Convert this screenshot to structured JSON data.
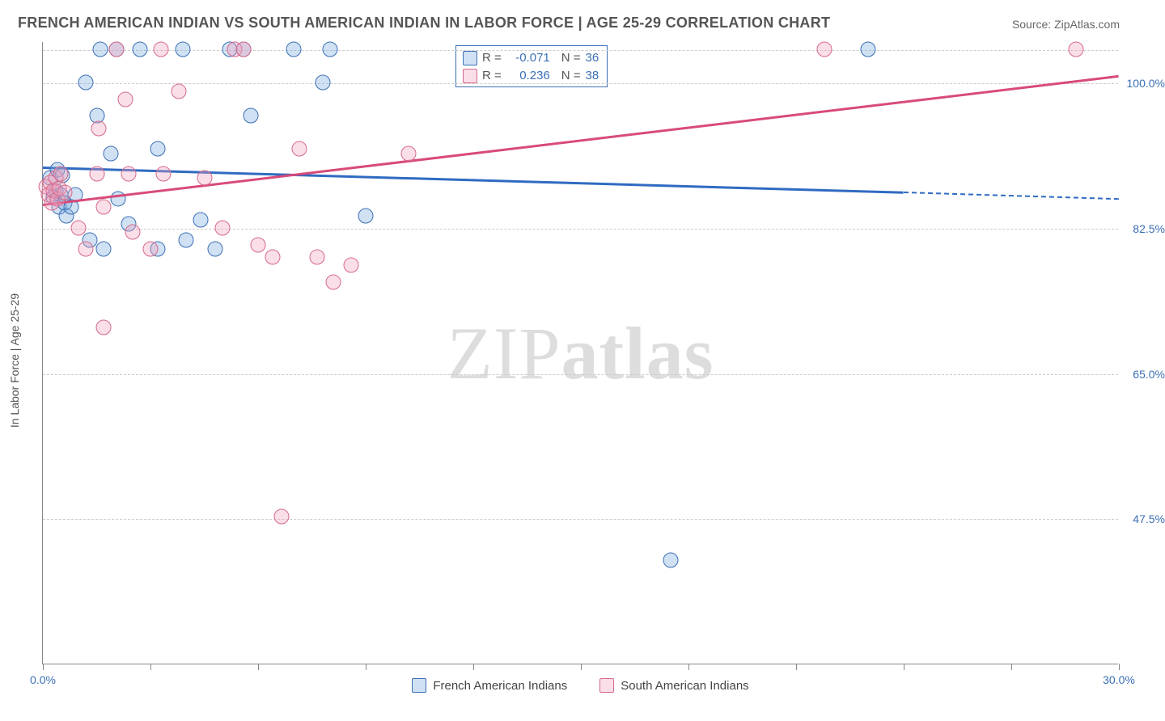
{
  "title": "FRENCH AMERICAN INDIAN VS SOUTH AMERICAN INDIAN IN LABOR FORCE | AGE 25-29 CORRELATION CHART",
  "source_prefix": "Source: ",
  "source_name": "ZipAtlas.com",
  "ylabel": "In Labor Force | Age 25-29",
  "watermark_thin": "ZIP",
  "watermark_bold": "atlas",
  "chart": {
    "type": "scatter-with-regression",
    "background_color": "#ffffff",
    "grid_color": "#cccccc",
    "axis_color": "#888888",
    "label_color_value": "#3b6fb5",
    "label_color_text": "#555555",
    "title_fontsize": 18,
    "tick_fontsize": 14,
    "point_radius": 9.5,
    "xlim": [
      0,
      30
    ],
    "ylim": [
      30,
      105
    ],
    "xtick_positions": [
      0,
      3,
      6,
      9,
      12,
      15,
      18,
      21,
      24,
      27,
      30
    ],
    "xtick_labels": {
      "0": "0.0%",
      "30": "30.0%"
    },
    "ytick_positions": [
      47.5,
      65.0,
      82.5,
      100.0
    ],
    "ytick_labels": [
      "47.5%",
      "65.0%",
      "82.5%",
      "100.0%"
    ],
    "gridline_y_top": 104,
    "series": [
      {
        "name": "French American Indians",
        "color_border": "#3b6fb5",
        "color_fill": "rgba(120,170,220,0.35)",
        "stats": {
          "R": "-0.071",
          "N": "36"
        },
        "trend": {
          "x1": 0,
          "y1": 90.0,
          "x2": 24,
          "y2": 87.0,
          "dash_x2": 30,
          "dash_y2": 86.2,
          "color": "#2f6bc2"
        },
        "points": [
          [
            0.2,
            88.5
          ],
          [
            0.3,
            86.2
          ],
          [
            0.35,
            87.0
          ],
          [
            0.4,
            89.5
          ],
          [
            0.45,
            85.0
          ],
          [
            0.5,
            86.5
          ],
          [
            0.55,
            88.8
          ],
          [
            0.6,
            85.5
          ],
          [
            0.65,
            84.0
          ],
          [
            0.8,
            85.0
          ],
          [
            0.9,
            86.5
          ],
          [
            1.2,
            100.0
          ],
          [
            1.3,
            81.0
          ],
          [
            1.5,
            96.0
          ],
          [
            1.6,
            104.0
          ],
          [
            1.7,
            80.0
          ],
          [
            1.9,
            91.5
          ],
          [
            2.05,
            104.0
          ],
          [
            2.1,
            86.0
          ],
          [
            2.4,
            83.0
          ],
          [
            2.7,
            104.0
          ],
          [
            3.2,
            92.0
          ],
          [
            3.2,
            80.0
          ],
          [
            3.9,
            104.0
          ],
          [
            4.0,
            81.0
          ],
          [
            4.4,
            83.5
          ],
          [
            4.8,
            80.0
          ],
          [
            5.2,
            104.0
          ],
          [
            5.6,
            104.0
          ],
          [
            5.8,
            96.0
          ],
          [
            7.0,
            104.0
          ],
          [
            8.0,
            104.0
          ],
          [
            7.8,
            100.0
          ],
          [
            9.0,
            84.0
          ],
          [
            17.5,
            42.5
          ],
          [
            23.0,
            104.0
          ]
        ]
      },
      {
        "name": "South American Indians",
        "color_border": "#d66a8b",
        "color_fill": "rgba(240,160,190,0.35)",
        "stats": {
          "R": "0.236",
          "N": "38"
        },
        "trend": {
          "x1": 0,
          "y1": 85.5,
          "x2": 30,
          "y2": 101.0,
          "color": "#d84a7a"
        },
        "points": [
          [
            0.1,
            87.5
          ],
          [
            0.15,
            86.5
          ],
          [
            0.2,
            88.0
          ],
          [
            0.25,
            85.5
          ],
          [
            0.3,
            87.0
          ],
          [
            0.35,
            88.5
          ],
          [
            0.4,
            86.0
          ],
          [
            0.45,
            87.3
          ],
          [
            0.5,
            89.0
          ],
          [
            0.6,
            86.8
          ],
          [
            1.0,
            82.5
          ],
          [
            1.2,
            80.0
          ],
          [
            1.5,
            89.0
          ],
          [
            1.55,
            94.5
          ],
          [
            1.7,
            70.5
          ],
          [
            1.7,
            85.0
          ],
          [
            2.05,
            104.0
          ],
          [
            2.3,
            98.0
          ],
          [
            2.4,
            89.0
          ],
          [
            2.5,
            82.0
          ],
          [
            3.0,
            80.0
          ],
          [
            3.3,
            104.0
          ],
          [
            3.35,
            89.0
          ],
          [
            3.8,
            99.0
          ],
          [
            4.5,
            88.5
          ],
          [
            5.0,
            82.5
          ],
          [
            5.35,
            104.0
          ],
          [
            5.6,
            104.0
          ],
          [
            6.0,
            80.5
          ],
          [
            6.4,
            79.0
          ],
          [
            6.65,
            47.7
          ],
          [
            7.15,
            92.0
          ],
          [
            7.65,
            79.0
          ],
          [
            8.1,
            76.0
          ],
          [
            8.6,
            78.0
          ],
          [
            10.2,
            91.5
          ],
          [
            21.8,
            104.0
          ],
          [
            28.8,
            104.0
          ]
        ]
      }
    ],
    "legend": [
      {
        "swatch": "blue",
        "label": "French American Indians"
      },
      {
        "swatch": "pink",
        "label": "South American Indians"
      }
    ]
  }
}
